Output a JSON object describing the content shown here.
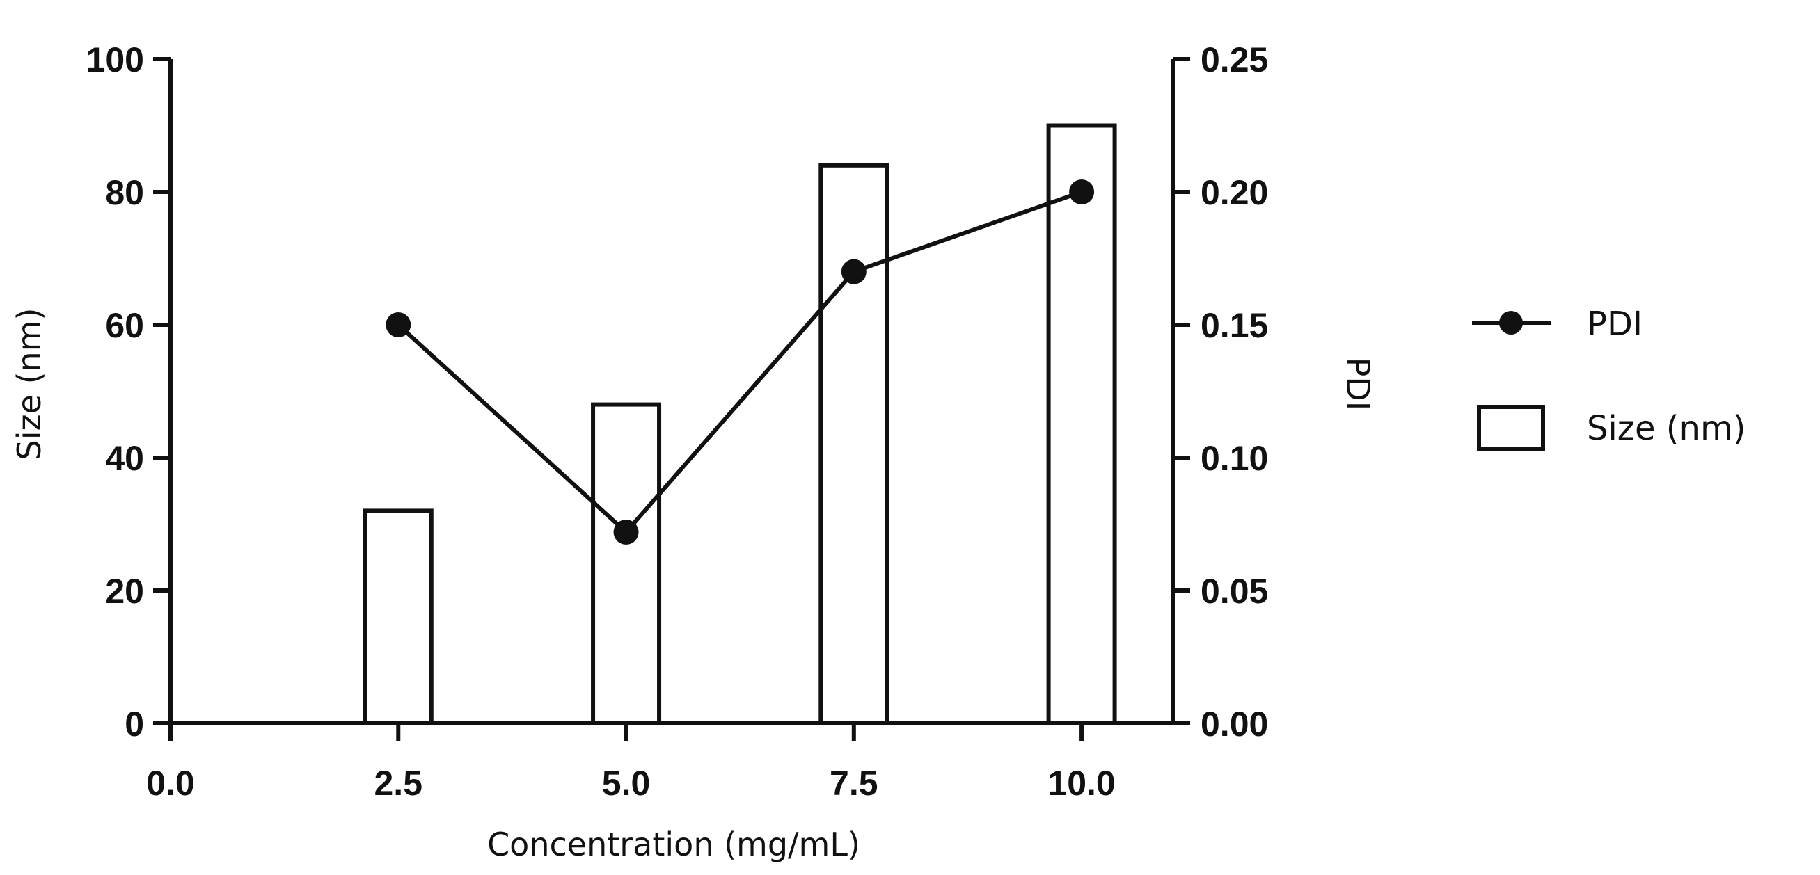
{
  "chart_data": {
    "type": "bar",
    "title": "",
    "xlabel": "Concentration (mg/mL)",
    "ylabel": "Size (nm)",
    "y2label": "PDI",
    "xlim": [
      0.0,
      11.0
    ],
    "ylim": [
      0,
      100
    ],
    "y2lim": [
      0.0,
      0.25
    ],
    "x_ticks": [
      "0.0",
      "2.5",
      "5.0",
      "7.5",
      "10.0"
    ],
    "x_tick_values": [
      0.0,
      2.5,
      5.0,
      7.5,
      10.0
    ],
    "y_ticks": [
      "0",
      "20",
      "40",
      "60",
      "80",
      "100"
    ],
    "y_tick_values": [
      0,
      20,
      40,
      60,
      80,
      100
    ],
    "y2_ticks": [
      "0.00",
      "0.05",
      "0.10",
      "0.15",
      "0.20",
      "0.25"
    ],
    "y2_tick_values": [
      0.0,
      0.05,
      0.1,
      0.15,
      0.2,
      0.25
    ],
    "series": [
      {
        "name": "Size (nm)",
        "type": "bar",
        "axis": "left",
        "x": [
          2.5,
          5.0,
          7.5,
          10.0
        ],
        "values": [
          32,
          48,
          84,
          90
        ]
      },
      {
        "name": "PDI",
        "type": "line",
        "axis": "right",
        "x": [
          2.5,
          5.0,
          7.5,
          10.0
        ],
        "values": [
          0.15,
          0.072,
          0.17,
          0.2
        ]
      }
    ],
    "legend": {
      "position": "right",
      "entries": [
        "PDI",
        "Size (nm)"
      ]
    },
    "grid": false,
    "colors": {
      "line": "#111111",
      "bar_fill": "#ffffff",
      "bar_stroke": "#111111"
    }
  }
}
